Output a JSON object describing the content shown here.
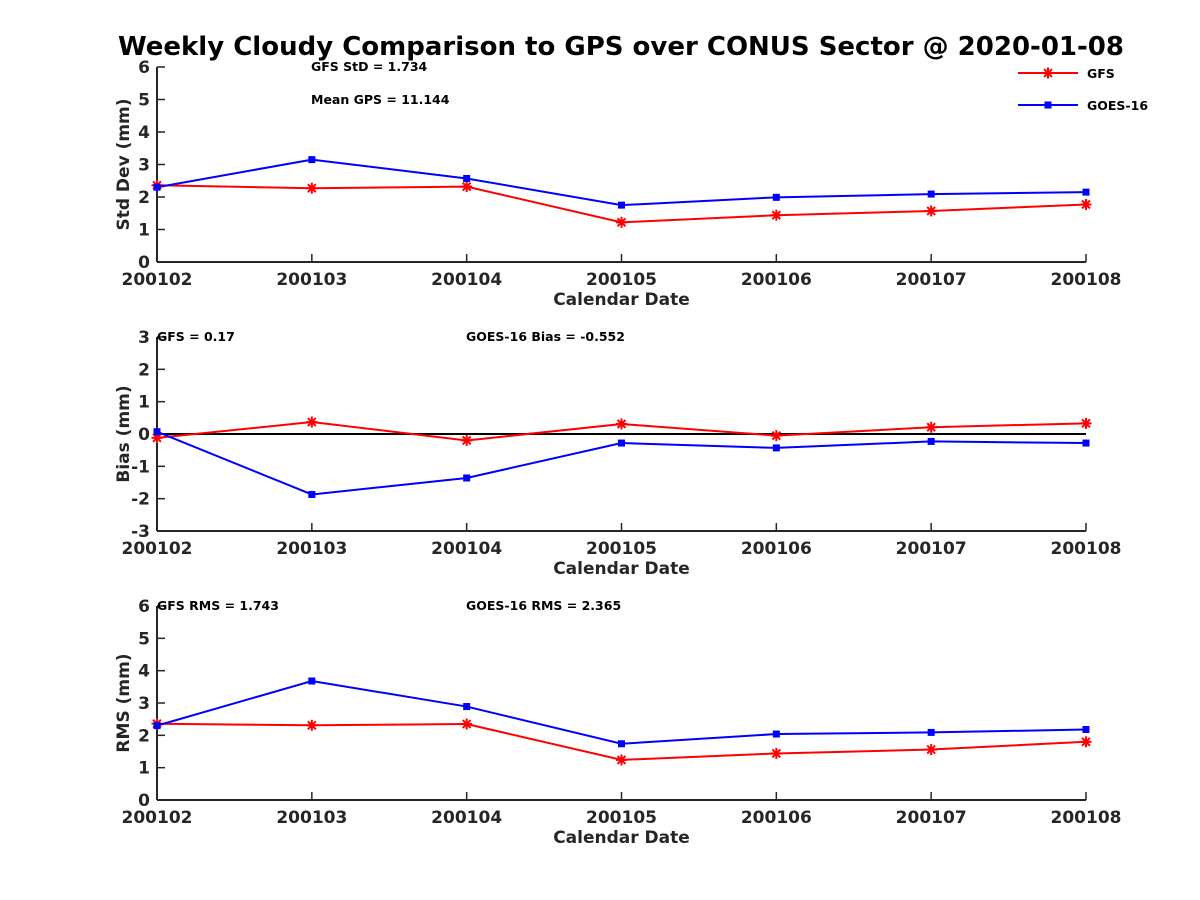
{
  "title": "Weekly Cloudy Comparison to GPS over CONUS Sector @ 2020-01-08",
  "colors": {
    "GFS": "#ff0000",
    "GOES-16": "#0000ff",
    "axis": "#262626",
    "zero_line": "#000000"
  },
  "chart_data": [
    {
      "type": "line",
      "xlabel": "Calendar Date",
      "ylabel": "Std Dev (mm)",
      "ylim": [
        0,
        6
      ],
      "yticks": [
        "0",
        "1",
        "2",
        "3",
        "4",
        "5",
        "6"
      ],
      "categories": [
        "200102",
        "200103",
        "200104",
        "200105",
        "200106",
        "200107",
        "200108"
      ],
      "series": [
        {
          "name": "GFS",
          "marker": "asterisk",
          "values": [
            2.36,
            2.27,
            2.32,
            1.22,
            1.44,
            1.57,
            1.77
          ]
        },
        {
          "name": "GOES-16",
          "marker": "square",
          "values": [
            2.3,
            3.15,
            2.57,
            1.75,
            1.99,
            2.09,
            2.15
          ]
        }
      ],
      "annotations": [
        "GFS StD = 1.734",
        "Mean GPS = 11.144"
      ],
      "legend": [
        "GFS",
        "GOES-16"
      ],
      "legend_position": "top-right",
      "grid": false
    },
    {
      "type": "line",
      "xlabel": "Calendar Date",
      "ylabel": "Bias (mm)",
      "ylim": [
        -3,
        3
      ],
      "yticks": [
        "-3",
        "-2",
        "-1",
        "0",
        "1",
        "2",
        "3"
      ],
      "categories": [
        "200102",
        "200103",
        "200104",
        "200105",
        "200106",
        "200107",
        "200108"
      ],
      "series": [
        {
          "name": "GFS",
          "marker": "asterisk",
          "values": [
            -0.12,
            0.37,
            -0.2,
            0.31,
            -0.05,
            0.21,
            0.33
          ]
        },
        {
          "name": "GOES-16",
          "marker": "square",
          "values": [
            0.07,
            -1.87,
            -1.36,
            -0.28,
            -0.43,
            -0.23,
            -0.28
          ]
        }
      ],
      "annotations": [
        "GFS = 0.17",
        "GOES-16 Bias  = -0.552"
      ],
      "zero_line": true,
      "grid": false
    },
    {
      "type": "line",
      "xlabel": "Calendar Date",
      "ylabel": "RMS (mm)",
      "ylim": [
        0,
        6
      ],
      "yticks": [
        "0",
        "1",
        "2",
        "3",
        "4",
        "5",
        "6"
      ],
      "categories": [
        "200102",
        "200103",
        "200104",
        "200105",
        "200106",
        "200107",
        "200108"
      ],
      "series": [
        {
          "name": "GFS",
          "marker": "asterisk",
          "values": [
            2.36,
            2.31,
            2.35,
            1.24,
            1.44,
            1.56,
            1.8
          ]
        },
        {
          "name": "GOES-16",
          "marker": "square",
          "values": [
            2.3,
            3.68,
            2.89,
            1.74,
            2.04,
            2.09,
            2.18
          ]
        }
      ],
      "annotations": [
        "GFS RMS = 1.743",
        "GOES-16 RMS = 2.365"
      ],
      "grid": false
    }
  ]
}
